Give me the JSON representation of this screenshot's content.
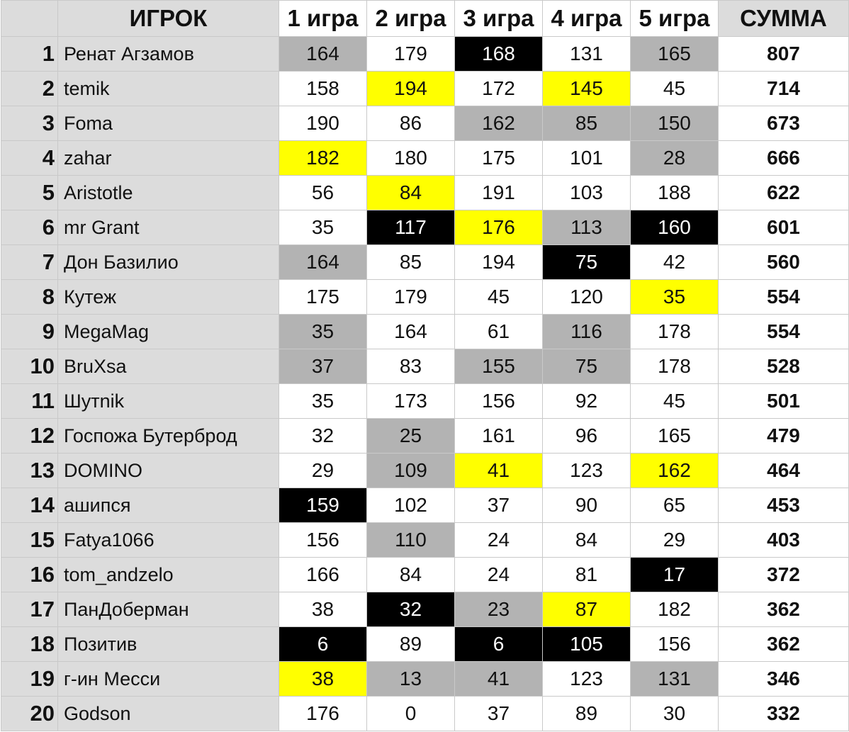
{
  "table": {
    "headers": [
      "",
      "ИГРОК",
      "1 игра",
      "2 игра",
      "3 игра",
      "4 игра",
      "5 игра",
      "СУММА"
    ],
    "rows": [
      {
        "rank": "1",
        "name": "Ренат Агзамов",
        "scores": [
          "164",
          "179",
          "168",
          "131",
          "165"
        ],
        "hl": [
          "gray",
          "",
          "black",
          "",
          "gray"
        ],
        "total": "807"
      },
      {
        "rank": "2",
        "name": "temik",
        "scores": [
          "158",
          "194",
          "172",
          "145",
          "45"
        ],
        "hl": [
          "",
          "yellow",
          "",
          "yellow",
          ""
        ],
        "total": "714"
      },
      {
        "rank": "3",
        "name": "Foma",
        "scores": [
          "190",
          "86",
          "162",
          "85",
          "150"
        ],
        "hl": [
          "",
          "",
          "gray",
          "gray",
          "gray"
        ],
        "total": "673"
      },
      {
        "rank": "4",
        "name": "zahar",
        "scores": [
          "182",
          "180",
          "175",
          "101",
          "28"
        ],
        "hl": [
          "yellow",
          "",
          "",
          "",
          "gray"
        ],
        "total": "666"
      },
      {
        "rank": "5",
        "name": "Aristotle",
        "scores": [
          "56",
          "84",
          "191",
          "103",
          "188"
        ],
        "hl": [
          "",
          "yellow",
          "",
          "",
          ""
        ],
        "total": "622"
      },
      {
        "rank": "6",
        "name": "mr Grant",
        "scores": [
          "35",
          "117",
          "176",
          "113",
          "160"
        ],
        "hl": [
          "",
          "black",
          "yellow",
          "gray",
          "black"
        ],
        "total": "601"
      },
      {
        "rank": "7",
        "name": "Дон Базилио",
        "scores": [
          "164",
          "85",
          "194",
          "75",
          "42"
        ],
        "hl": [
          "gray",
          "",
          "",
          "black",
          ""
        ],
        "total": "560"
      },
      {
        "rank": "8",
        "name": "Кутеж",
        "scores": [
          "175",
          "179",
          "45",
          "120",
          "35"
        ],
        "hl": [
          "",
          "",
          "",
          "",
          "yellow"
        ],
        "total": "554"
      },
      {
        "rank": "9",
        "name": "MegaMag",
        "scores": [
          "35",
          "164",
          "61",
          "116",
          "178"
        ],
        "hl": [
          "gray",
          "",
          "",
          "gray",
          ""
        ],
        "total": "554"
      },
      {
        "rank": "10",
        "name": "BruXsa",
        "scores": [
          "37",
          "83",
          "155",
          "75",
          "178"
        ],
        "hl": [
          "gray",
          "",
          "gray",
          "gray",
          ""
        ],
        "total": "528"
      },
      {
        "rank": "11",
        "name": "Шутnik",
        "scores": [
          "35",
          "173",
          "156",
          "92",
          "45"
        ],
        "hl": [
          "",
          "",
          "",
          "",
          ""
        ],
        "total": "501"
      },
      {
        "rank": "12",
        "name": "Госпожа Бутерброд",
        "scores": [
          "32",
          "25",
          "161",
          "96",
          "165"
        ],
        "hl": [
          "",
          "gray",
          "",
          "",
          ""
        ],
        "total": "479"
      },
      {
        "rank": "13",
        "name": "DOMINO",
        "scores": [
          "29",
          "109",
          "41",
          "123",
          "162"
        ],
        "hl": [
          "",
          "gray",
          "yellow",
          "",
          "yellow"
        ],
        "total": "464"
      },
      {
        "rank": "14",
        "name": "ашипся",
        "scores": [
          "159",
          "102",
          "37",
          "90",
          "65"
        ],
        "hl": [
          "black",
          "",
          "",
          "",
          ""
        ],
        "total": "453"
      },
      {
        "rank": "15",
        "name": "Fatya1066",
        "scores": [
          "156",
          "110",
          "24",
          "84",
          "29"
        ],
        "hl": [
          "",
          "gray",
          "",
          "",
          ""
        ],
        "total": "403"
      },
      {
        "rank": "16",
        "name": "tom_andzelo",
        "scores": [
          "166",
          "84",
          "24",
          "81",
          "17"
        ],
        "hl": [
          "",
          "",
          "",
          "",
          "black"
        ],
        "total": "372"
      },
      {
        "rank": "17",
        "name": "ПанДоберман",
        "scores": [
          "38",
          "32",
          "23",
          "87",
          "182"
        ],
        "hl": [
          "",
          "black",
          "gray",
          "yellow",
          ""
        ],
        "total": "362"
      },
      {
        "rank": "18",
        "name": "Позитив",
        "scores": [
          "6",
          "89",
          "6",
          "105",
          "156"
        ],
        "hl": [
          "black",
          "",
          "black",
          "black",
          ""
        ],
        "total": "362"
      },
      {
        "rank": "19",
        "name": "г-ин Месси",
        "scores": [
          "38",
          "13",
          "41",
          "123",
          "131"
        ],
        "hl": [
          "yellow",
          "gray",
          "gray",
          "",
          "gray"
        ],
        "total": "346"
      },
      {
        "rank": "20",
        "name": "Godson",
        "scores": [
          "176",
          "0",
          "37",
          "89",
          "30"
        ],
        "hl": [
          "",
          "",
          "",
          "",
          ""
        ],
        "total": "332"
      }
    ]
  },
  "highlight_colors": {
    "gray": "#b3b3b3",
    "black": "#000000",
    "yellow": "#ffff00"
  }
}
